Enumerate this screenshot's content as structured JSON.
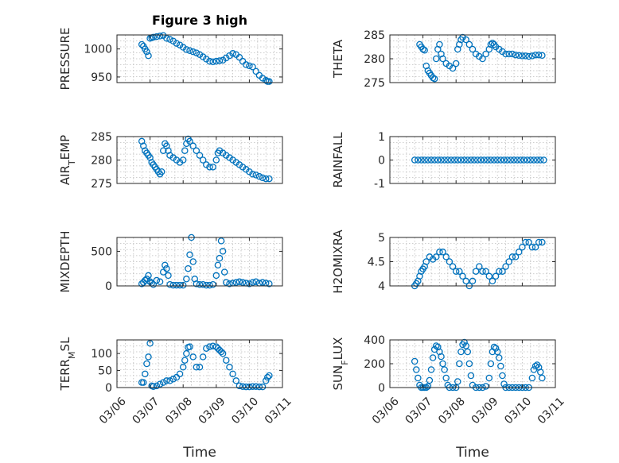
{
  "figure": {
    "title": "Figure 3 high",
    "marker_color": "#0072BD",
    "x_label": "Time",
    "x_ticks": [
      "03/06",
      "03/07",
      "03/08",
      "03/09",
      "03/10",
      "03/11"
    ]
  },
  "chart_data": [
    {
      "type": "scatter",
      "ylabel": "PRESSURE",
      "yticks": [
        950,
        1000
      ],
      "ylim": [
        940,
        1025
      ],
      "xlim": [
        0,
        5
      ],
      "x": [
        0.75,
        0.8,
        0.85,
        0.9,
        0.95,
        1.0,
        1.05,
        1.1,
        1.2,
        1.3,
        1.4,
        1.5,
        1.6,
        1.7,
        1.8,
        1.9,
        2.0,
        2.1,
        2.2,
        2.3,
        2.4,
        2.5,
        2.6,
        2.7,
        2.8,
        2.9,
        3.0,
        3.1,
        3.2,
        3.3,
        3.4,
        3.5,
        3.6,
        3.7,
        3.8,
        3.9,
        4.0,
        4.1,
        4.2,
        4.3,
        4.4,
        4.5,
        4.55,
        4.6
      ],
      "y": [
        1008,
        1005,
        1000,
        995,
        988,
        1019,
        1020,
        1021,
        1022,
        1023,
        1024,
        1019,
        1017,
        1014,
        1010,
        1007,
        1003,
        999,
        997,
        995,
        993,
        990,
        986,
        982,
        978,
        977,
        978,
        979,
        980,
        984,
        988,
        992,
        990,
        985,
        978,
        972,
        970,
        968,
        960,
        953,
        948,
        944,
        942,
        942
      ]
    },
    {
      "type": "scatter",
      "ylabel": "THETA",
      "yticks": [
        275,
        280,
        285
      ],
      "ylim": [
        275,
        285
      ],
      "xlim": [
        0,
        5
      ],
      "x": [
        0.9,
        0.95,
        1.0,
        1.05,
        1.1,
        1.15,
        1.2,
        1.25,
        1.3,
        1.35,
        1.4,
        1.45,
        1.5,
        1.55,
        1.6,
        1.7,
        1.8,
        1.9,
        2.0,
        2.05,
        2.1,
        2.15,
        2.2,
        2.3,
        2.4,
        2.5,
        2.6,
        2.7,
        2.8,
        2.9,
        3.0,
        3.05,
        3.1,
        3.15,
        3.2,
        3.3,
        3.4,
        3.5,
        3.6,
        3.7,
        3.8,
        3.9,
        4.0,
        4.1,
        4.2,
        4.3,
        4.4,
        4.5,
        4.6
      ],
      "y": [
        283,
        282.5,
        282,
        281.8,
        278.5,
        277.5,
        277,
        276.5,
        276,
        275.8,
        280,
        282,
        283,
        281,
        280,
        279,
        278.5,
        278,
        279,
        282,
        283,
        284,
        284.5,
        284,
        283,
        282,
        281,
        280.5,
        280,
        281,
        282,
        283,
        283.3,
        283,
        282.5,
        282,
        281.5,
        281,
        281,
        281,
        280.8,
        280.7,
        280.6,
        280.6,
        280.5,
        280.6,
        280.8,
        280.8,
        280.7
      ]
    },
    {
      "type": "scatter",
      "ylabel": "AIR_TEMP",
      "yticks": [
        275,
        280,
        285
      ],
      "ylim": [
        275,
        285
      ],
      "xlim": [
        0,
        5
      ],
      "x": [
        0.75,
        0.8,
        0.85,
        0.9,
        0.95,
        1.0,
        1.05,
        1.1,
        1.15,
        1.2,
        1.25,
        1.3,
        1.35,
        1.4,
        1.45,
        1.5,
        1.55,
        1.6,
        1.7,
        1.8,
        1.9,
        2.0,
        2.05,
        2.1,
        2.15,
        2.2,
        2.3,
        2.4,
        2.5,
        2.6,
        2.7,
        2.8,
        2.9,
        3.0,
        3.05,
        3.1,
        3.2,
        3.3,
        3.4,
        3.5,
        3.6,
        3.7,
        3.8,
        3.9,
        4.0,
        4.1,
        4.2,
        4.3,
        4.4,
        4.5,
        4.6
      ],
      "y": [
        284,
        283,
        282,
        281.5,
        281,
        280.5,
        279.5,
        279,
        278.5,
        278,
        277.5,
        277,
        277.5,
        282,
        283.5,
        283,
        282,
        281,
        280.5,
        280,
        279.5,
        280,
        282,
        283.5,
        284.5,
        284,
        283,
        282,
        281,
        280,
        279,
        278.5,
        278.5,
        280,
        281.5,
        282,
        281.5,
        281,
        280.5,
        280,
        279.5,
        279,
        278.5,
        278,
        277.5,
        277,
        276.8,
        276.5,
        276.2,
        276,
        276
      ]
    },
    {
      "type": "scatter",
      "ylabel": "RAINFALL",
      "yticks": [
        -1,
        0,
        1
      ],
      "ylim": [
        -1,
        1
      ],
      "xlim": [
        0,
        5
      ],
      "x": [
        0.75,
        0.85,
        0.95,
        1.05,
        1.15,
        1.25,
        1.35,
        1.45,
        1.55,
        1.65,
        1.75,
        1.85,
        1.95,
        2.05,
        2.15,
        2.25,
        2.35,
        2.45,
        2.55,
        2.65,
        2.75,
        2.85,
        2.95,
        3.05,
        3.15,
        3.25,
        3.35,
        3.45,
        3.55,
        3.65,
        3.75,
        3.85,
        3.95,
        4.05,
        4.15,
        4.25,
        4.35,
        4.45,
        4.55,
        4.65
      ],
      "y": [
        0,
        0,
        0,
        0,
        0,
        0,
        0,
        0,
        0,
        0,
        0,
        0,
        0,
        0,
        0,
        0,
        0,
        0,
        0,
        0,
        0,
        0,
        0,
        0,
        0,
        0,
        0,
        0,
        0,
        0,
        0,
        0,
        0,
        0,
        0,
        0,
        0,
        0,
        0,
        0
      ]
    },
    {
      "type": "scatter",
      "ylabel": "MIXDEPTH",
      "yticks": [
        0,
        500
      ],
      "ylim": [
        0,
        700
      ],
      "xlim": [
        0,
        5
      ],
      "x": [
        0.75,
        0.8,
        0.85,
        0.9,
        0.95,
        1.0,
        1.05,
        1.1,
        1.2,
        1.3,
        1.4,
        1.45,
        1.5,
        1.55,
        1.6,
        1.7,
        1.8,
        1.9,
        2.0,
        2.1,
        2.15,
        2.2,
        2.25,
        2.3,
        2.35,
        2.4,
        2.5,
        2.6,
        2.7,
        2.8,
        2.9,
        3.0,
        3.05,
        3.1,
        3.15,
        3.2,
        3.25,
        3.3,
        3.4,
        3.5,
        3.6,
        3.7,
        3.8,
        3.9,
        4.0,
        4.1,
        4.2,
        4.3,
        4.4,
        4.5,
        4.6
      ],
      "y": [
        30,
        50,
        80,
        100,
        150,
        60,
        40,
        20,
        80,
        60,
        200,
        300,
        250,
        150,
        20,
        10,
        10,
        10,
        10,
        100,
        250,
        450,
        700,
        350,
        100,
        30,
        20,
        20,
        10,
        10,
        20,
        150,
        300,
        400,
        650,
        500,
        200,
        50,
        30,
        40,
        50,
        60,
        50,
        40,
        30,
        50,
        60,
        40,
        50,
        40,
        30
      ]
    },
    {
      "type": "scatter",
      "ylabel": "H2OMIXRA",
      "yticks": [
        4,
        4.5,
        5
      ],
      "ylim": [
        4,
        5
      ],
      "xlim": [
        0,
        5
      ],
      "x": [
        0.75,
        0.8,
        0.85,
        0.9,
        0.95,
        1.0,
        1.05,
        1.1,
        1.2,
        1.3,
        1.4,
        1.5,
        1.6,
        1.7,
        1.8,
        1.9,
        2.0,
        2.1,
        2.2,
        2.3,
        2.4,
        2.5,
        2.6,
        2.7,
        2.8,
        2.9,
        3.0,
        3.1,
        3.2,
        3.3,
        3.4,
        3.5,
        3.6,
        3.7,
        3.8,
        3.9,
        4.0,
        4.1,
        4.2,
        4.3,
        4.4,
        4.5,
        4.6
      ],
      "y": [
        4.0,
        4.05,
        4.1,
        4.2,
        4.3,
        4.35,
        4.4,
        4.5,
        4.6,
        4.55,
        4.6,
        4.7,
        4.7,
        4.6,
        4.5,
        4.4,
        4.3,
        4.3,
        4.2,
        4.1,
        4.0,
        4.1,
        4.3,
        4.4,
        4.3,
        4.3,
        4.2,
        4.1,
        4.2,
        4.3,
        4.3,
        4.4,
        4.5,
        4.6,
        4.6,
        4.7,
        4.8,
        4.9,
        4.9,
        4.8,
        4.8,
        4.9,
        4.9
      ]
    },
    {
      "type": "scatter",
      "ylabel": "TERR_MSL",
      "yticks": [
        0,
        50,
        100
      ],
      "ylim": [
        0,
        140
      ],
      "xlim": [
        0,
        5
      ],
      "x": [
        0.75,
        0.8,
        0.85,
        0.9,
        0.95,
        1.0,
        1.05,
        1.1,
        1.2,
        1.3,
        1.4,
        1.5,
        1.6,
        1.7,
        1.8,
        1.9,
        2.0,
        2.05,
        2.1,
        2.15,
        2.2,
        2.3,
        2.4,
        2.5,
        2.6,
        2.7,
        2.8,
        2.9,
        3.0,
        3.05,
        3.1,
        3.15,
        3.2,
        3.3,
        3.4,
        3.5,
        3.6,
        3.7,
        3.8,
        3.9,
        4.0,
        4.1,
        4.2,
        4.3,
        4.4,
        4.5,
        4.55,
        4.6
      ],
      "y": [
        15,
        15,
        40,
        70,
        90,
        130,
        5,
        3,
        5,
        10,
        15,
        20,
        20,
        25,
        30,
        40,
        60,
        80,
        100,
        118,
        120,
        90,
        60,
        60,
        90,
        115,
        120,
        122,
        120,
        115,
        110,
        105,
        100,
        80,
        60,
        40,
        20,
        5,
        3,
        2,
        2,
        3,
        3,
        2,
        2,
        20,
        30,
        35
      ]
    },
    {
      "type": "scatter",
      "ylabel": "SUN_FLUX",
      "yticks": [
        0,
        200,
        400
      ],
      "ylim": [
        0,
        400
      ],
      "xlim": [
        0,
        5
      ],
      "x": [
        0.75,
        0.8,
        0.85,
        0.9,
        0.95,
        1.0,
        1.05,
        1.1,
        1.15,
        1.2,
        1.25,
        1.3,
        1.35,
        1.4,
        1.45,
        1.5,
        1.55,
        1.6,
        1.65,
        1.7,
        1.75,
        1.8,
        1.9,
        2.0,
        2.05,
        2.1,
        2.15,
        2.2,
        2.25,
        2.3,
        2.35,
        2.4,
        2.45,
        2.5,
        2.6,
        2.7,
        2.8,
        2.9,
        3.0,
        3.05,
        3.1,
        3.15,
        3.2,
        3.25,
        3.3,
        3.35,
        3.4,
        3.45,
        3.5,
        3.6,
        3.7,
        3.8,
        3.9,
        4.0,
        4.1,
        4.2,
        4.3,
        4.35,
        4.4,
        4.45,
        4.5,
        4.55,
        4.6
      ],
      "y": [
        220,
        150,
        80,
        20,
        0,
        0,
        0,
        0,
        10,
        60,
        150,
        250,
        320,
        350,
        340,
        300,
        260,
        200,
        150,
        80,
        20,
        0,
        0,
        0,
        50,
        200,
        300,
        360,
        380,
        350,
        300,
        200,
        100,
        20,
        0,
        0,
        0,
        10,
        80,
        200,
        300,
        340,
        330,
        300,
        250,
        180,
        100,
        30,
        0,
        0,
        0,
        0,
        0,
        0,
        0,
        0,
        80,
        150,
        180,
        190,
        170,
        130,
        80
      ]
    }
  ]
}
